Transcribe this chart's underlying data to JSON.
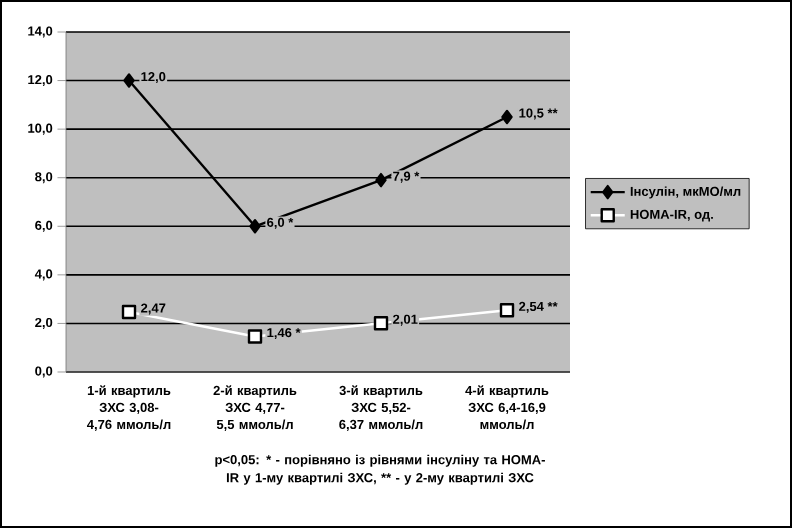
{
  "chart_data": {
    "type": "line",
    "categories": [
      "1-й квартиль ЗХС 3,08-4,76 ммоль/л",
      "2-й квартиль ЗХС 4,77-5,5 ммоль/л",
      "3-й квартиль ЗХС 5,52-6,37 ммоль/л",
      "4-й квартиль ЗХС 6,4-16,9 ммоль/л"
    ],
    "series": [
      {
        "name": "Інсулін, мкМО/мл",
        "color": "#000000",
        "marker": "diamond",
        "values": [
          12.0,
          6.0,
          7.9,
          10.5
        ],
        "value_labels": [
          "12,0",
          "6,0 *",
          "7,9 *",
          "10,5 **"
        ]
      },
      {
        "name": "НОМА-IR, од.",
        "color": "#ffffff",
        "marker": "square",
        "values": [
          2.47,
          1.46,
          2.01,
          2.54
        ],
        "value_labels": [
          "2,47",
          "1,46 *",
          "2,01",
          "2,54 **"
        ]
      }
    ],
    "ylim": [
      0,
      14
    ],
    "yticks": [
      {
        "value": 0,
        "label": "0,0"
      },
      {
        "value": 2,
        "label": "2,0"
      },
      {
        "value": 4,
        "label": "4,0"
      },
      {
        "value": 6,
        "label": "6,0"
      },
      {
        "value": 8,
        "label": "8,0"
      },
      {
        "value": 10,
        "label": "10,0"
      },
      {
        "value": 12,
        "label": "12,0"
      },
      {
        "value": 14,
        "label": "14,0"
      }
    ],
    "grid": "y",
    "legend": "right",
    "line_style": "solid",
    "annotations": [
      "p<0,05: * - порівняно із рівнями інсуліну та НОМА-IR у 1-му квартилі ЗХС, ** - у 2-му квартилі ЗХС"
    ]
  }
}
